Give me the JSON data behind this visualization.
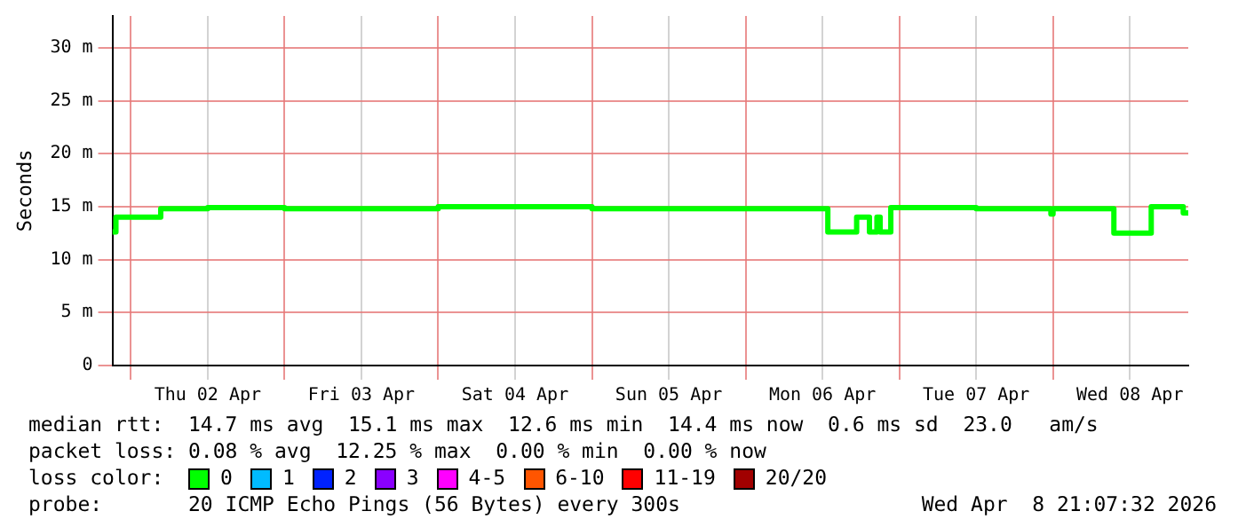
{
  "chart_data": {
    "type": "step",
    "ylabel": "Seconds",
    "legend_title": "loss color:",
    "legend": "bottom",
    "grid": true,
    "xlim": [
      "2026-04-01T21:07",
      "2026-04-08T21:07"
    ],
    "xticks": [
      {
        "value": "2026-04-02T00:00",
        "label": null
      },
      {
        "value": "2026-04-02T12:00",
        "label": "Thu 02 Apr"
      },
      {
        "value": "2026-04-03T00:00",
        "label": null
      },
      {
        "value": "2026-04-03T12:00",
        "label": "Fri 03 Apr"
      },
      {
        "value": "2026-04-04T00:00",
        "label": null
      },
      {
        "value": "2026-04-04T12:00",
        "label": "Sat 04 Apr"
      },
      {
        "value": "2026-04-05T00:00",
        "label": null
      },
      {
        "value": "2026-04-05T12:00",
        "label": "Sun 05 Apr"
      },
      {
        "value": "2026-04-06T00:00",
        "label": null
      },
      {
        "value": "2026-04-06T12:00",
        "label": "Mon 06 Apr"
      },
      {
        "value": "2026-04-07T00:00",
        "label": null
      },
      {
        "value": "2026-04-07T12:00",
        "label": "Tue 07 Apr"
      },
      {
        "value": "2026-04-08T00:00",
        "label": null
      },
      {
        "value": "2026-04-08T12:00",
        "label": "Wed 08 Apr"
      }
    ],
    "ylim": [
      0,
      33
    ],
    "yticks": [
      0,
      {
        "value": 5,
        "label": "5 m"
      },
      {
        "value": 10,
        "label": "10 m"
      },
      {
        "value": 15,
        "label": "15 m"
      },
      {
        "value": 20,
        "label": "20 m"
      },
      {
        "value": 25,
        "label": "25 m"
      },
      {
        "value": 30,
        "label": "30 m"
      }
    ],
    "x": [
      "2026-04-01T21:07",
      "2026-04-01T21:40",
      "2026-04-02T04:40",
      "2026-04-02T12:00",
      "2026-04-03T00:00",
      "2026-04-04T00:00",
      "2026-04-05T00:00",
      "2026-04-06T12:50",
      "2026-04-06T17:20",
      "2026-04-06T19:20",
      "2026-04-06T20:30",
      "2026-04-06T21:00",
      "2026-04-06T22:40",
      "2026-04-07T12:00",
      "2026-04-07T23:40",
      "2026-04-08T00:00",
      "2026-04-08T09:30",
      "2026-04-08T15:20",
      "2026-04-08T20:20",
      "2026-04-08T21:07"
    ],
    "series": [
      {
        "name": "0",
        "color": "#00ff00",
        "values": [
          12.6,
          14.0,
          14.8,
          14.9,
          14.8,
          15.0,
          14.8,
          12.6,
          14.0,
          12.6,
          14.0,
          12.6,
          14.9,
          14.8,
          14.3,
          14.8,
          12.5,
          15.0,
          14.4,
          14.4
        ]
      },
      {
        "name": "1",
        "color": "#00bbff",
        "values": [
          null,
          null,
          null,
          null,
          null,
          null,
          null,
          null,
          null,
          null,
          null,
          null,
          null,
          null,
          null,
          null,
          null,
          null,
          null,
          null
        ]
      },
      {
        "name": "2",
        "color": "#0022ff",
        "values": [
          null,
          null,
          null,
          null,
          null,
          null,
          null,
          null,
          null,
          null,
          null,
          null,
          null,
          null,
          null,
          null,
          null,
          null,
          null,
          null
        ]
      },
      {
        "name": "3",
        "color": "#8a00ff",
        "values": [
          null,
          null,
          null,
          null,
          null,
          null,
          null,
          null,
          null,
          null,
          null,
          null,
          null,
          null,
          null,
          null,
          null,
          null,
          null,
          null
        ]
      },
      {
        "name": "4-5",
        "color": "#ff00ff",
        "values": [
          null,
          null,
          null,
          null,
          null,
          null,
          null,
          null,
          null,
          null,
          null,
          null,
          null,
          null,
          null,
          null,
          null,
          null,
          null,
          null
        ]
      },
      {
        "name": "6-10",
        "color": "#ff5500",
        "values": [
          null,
          null,
          null,
          null,
          null,
          null,
          null,
          null,
          null,
          null,
          null,
          null,
          null,
          null,
          null,
          null,
          null,
          null,
          null,
          null
        ]
      },
      {
        "name": "11-19",
        "color": "#ff0000",
        "values": [
          null,
          null,
          null,
          null,
          null,
          null,
          null,
          null,
          null,
          null,
          null,
          null,
          null,
          null,
          null,
          null,
          null,
          null,
          null,
          null
        ]
      },
      {
        "name": "20/20",
        "color": "#a10000",
        "values": [
          null,
          null,
          null,
          null,
          null,
          null,
          null,
          null,
          null,
          null,
          null,
          null,
          null,
          null,
          null,
          null,
          null,
          null,
          null,
          null
        ]
      }
    ],
    "annotations": [
      "median rtt:  14.7 ms avg  15.1 ms max  12.6 ms min  14.4 ms now  0.6 ms sd  23.0   am/s",
      "packet loss: 0.08 % avg  12.25 % max  0.00 % min  0.00 % now",
      "probe:       20 ICMP Echo Pings (56 Bytes) every 300s",
      "Wed Apr  8 21:07:32 2026"
    ],
    "marker": "none",
    "line_style": "solid"
  }
}
